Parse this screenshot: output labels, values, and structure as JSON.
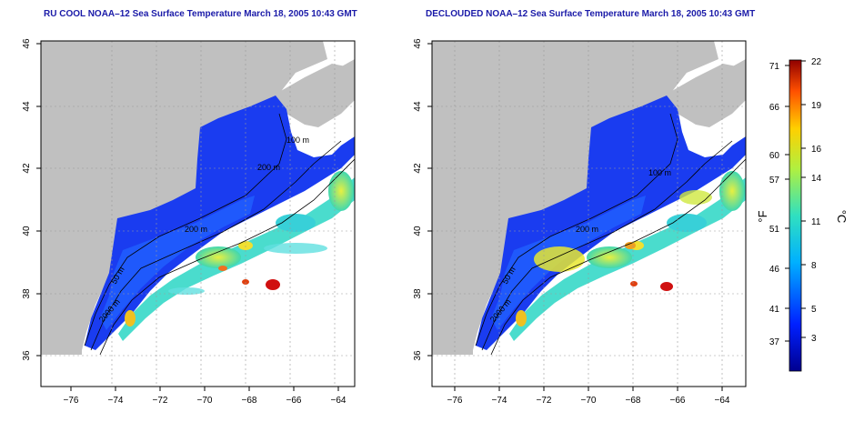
{
  "left_map": {
    "title": "RU COOL NOAA–12 Sea Surface Temperature March 18, 2005 10:43 GMT"
  },
  "right_map": {
    "title": "DECLOUDED NOAA–12 Sea Surface Temperature March 18, 2005 10:43 GMT"
  },
  "axes": {
    "x_ticks": [
      "−76",
      "−74",
      "−72",
      "−70",
      "−68",
      "−66",
      "−64"
    ],
    "y_ticks": [
      "36",
      "38",
      "40",
      "42",
      "44",
      "46"
    ]
  },
  "contour_labels": {
    "c100": "100 m",
    "c200": "200 m",
    "c2000": "2000 m",
    "c50": "50 m"
  },
  "colorbar": {
    "f_label": "°F",
    "c_label": "°C",
    "f_ticks": [
      "71",
      "66",
      "60",
      "57",
      "51",
      "46",
      "41",
      "37"
    ],
    "c_ticks": [
      "22",
      "19",
      "16",
      "14",
      "11",
      "8",
      "5",
      "3"
    ]
  },
  "colors": {
    "land": "#c0c0c0",
    "cold": "#1a3cf0",
    "warm": "#ffd200",
    "hot": "#d01010",
    "title": "#1a1aa8"
  }
}
